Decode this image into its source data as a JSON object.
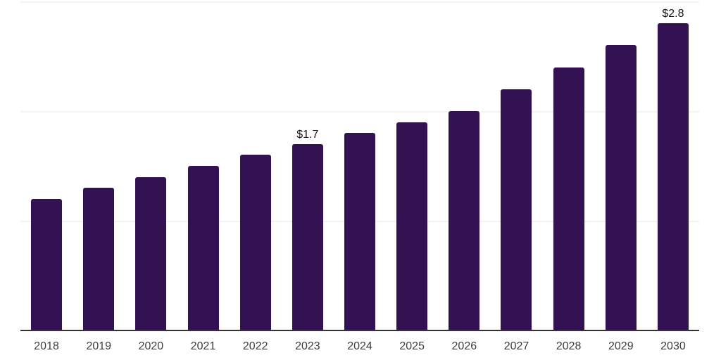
{
  "page": {
    "background_color": "#ffffff"
  },
  "chart_data": {
    "type": "bar",
    "title": "",
    "xlabel": "",
    "ylabel": "",
    "categories": [
      "2018",
      "2019",
      "2020",
      "2021",
      "2022",
      "2023",
      "2024",
      "2025",
      "2026",
      "2027",
      "2028",
      "2029",
      "2030"
    ],
    "values": [
      1.2,
      1.3,
      1.4,
      1.5,
      1.6,
      1.7,
      1.8,
      1.9,
      2.0,
      2.2,
      2.4,
      2.6,
      2.8
    ],
    "value_labels": [
      {
        "category": "2023",
        "text": "$1.7"
      },
      {
        "category": "2030",
        "text": "$2.8"
      }
    ],
    "ylim": [
      0,
      3
    ],
    "gridline_values": [
      1,
      2,
      3
    ],
    "y_axis_labels_visible": false,
    "grid": "horizontal",
    "legend": "none",
    "bar_color": "#341152",
    "grid_color": "#f2f2f4",
    "axis_color": "#333333",
    "tick_label_color": "#3d3d3d",
    "value_label_color": "#141414"
  }
}
